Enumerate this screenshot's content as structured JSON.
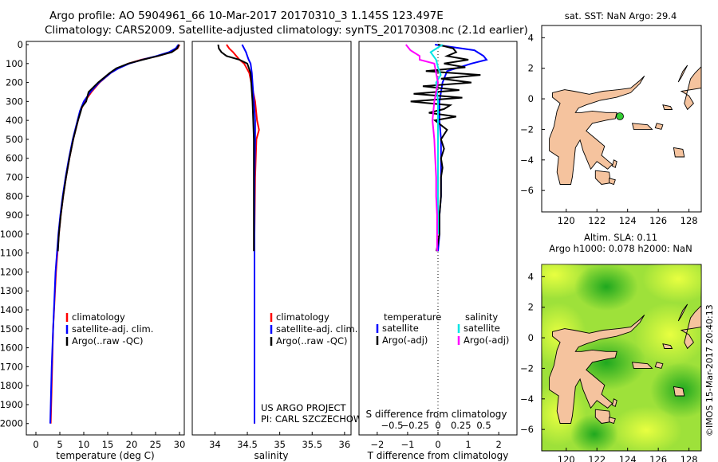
{
  "titles": {
    "line1": "Argo profile: AO 5904961_66 10-Mar-2017 20170310_3 1.145S 123.497E",
    "line2": "Climatology: CARS2009. Satellite-adjusted climatology: synTS_20170308.nc (2.1d earlier)"
  },
  "depth_ticks": [
    0,
    100,
    200,
    300,
    400,
    500,
    600,
    700,
    800,
    900,
    1000,
    1100,
    1200,
    1300,
    1400,
    1500,
    1600,
    1700,
    1800,
    1900,
    2000
  ],
  "colors": {
    "climatology": "#ff0000",
    "satellite": "#0000ff",
    "argo": "#000000",
    "satellite_salinity": "#00e5e5",
    "argo_salinity": "#ff00ff",
    "land": "#f5c39e",
    "sla_dark": "#22aa22",
    "sla_light": "#e8ff40"
  },
  "chart_data": [
    {
      "id": "temperature",
      "type": "line",
      "xlabel": "temperature (deg C)",
      "xlim": [
        -2,
        31
      ],
      "ylim": [
        0,
        2060
      ],
      "xticks": [
        0,
        5,
        10,
        15,
        20,
        25,
        30
      ],
      "legend": [
        "climatology",
        "satellite-adj. clim.",
        "Argo(..raw -QC)"
      ],
      "series": [
        {
          "name": "climatology",
          "depth": [
            0,
            20,
            40,
            60,
            80,
            100,
            125,
            150,
            200,
            250,
            300,
            350,
            400,
            500,
            600,
            700,
            800,
            900,
            1000,
            1200,
            1500,
            1700,
            2000
          ],
          "values": [
            30,
            29.6,
            28.3,
            25.5,
            22,
            19.3,
            17.2,
            15.6,
            13.3,
            11.6,
            10.2,
            9.3,
            8.8,
            7.8,
            7.0,
            6.3,
            5.7,
            5.2,
            4.8,
            4.2,
            3.6,
            3.4,
            3.1
          ]
        },
        {
          "name": "satellite-adj. clim.",
          "depth": [
            0,
            20,
            40,
            60,
            80,
            100,
            125,
            150,
            200,
            250,
            300,
            350,
            400,
            500,
            600,
            700,
            800,
            900,
            1000,
            1200,
            1500,
            1700,
            2000
          ],
          "values": [
            29.8,
            29.2,
            27.8,
            25.2,
            22.2,
            19.5,
            17.3,
            15.6,
            13.2,
            11.4,
            10.0,
            9.2,
            8.7,
            7.7,
            6.9,
            6.2,
            5.6,
            5.1,
            4.7,
            4.1,
            3.6,
            3.3,
            3.0
          ]
        },
        {
          "name": "Argo(..raw -QC)",
          "depth": [
            0,
            20,
            40,
            60,
            80,
            100,
            125,
            150,
            200,
            250,
            300,
            330,
            350,
            400,
            500,
            600,
            700,
            800,
            900,
            1000,
            1090
          ],
          "values": [
            29.9,
            29.5,
            28.4,
            25.5,
            22.3,
            19.3,
            16.8,
            15.4,
            13.0,
            11.0,
            10.5,
            9.6,
            9.4,
            8.8,
            7.8,
            7.0,
            6.3,
            5.7,
            5.2,
            4.8,
            4.6
          ]
        }
      ]
    },
    {
      "id": "salinity",
      "type": "line",
      "xlabel": "salinity",
      "xlim": [
        33.65,
        36.1
      ],
      "ylim": [
        0,
        2060
      ],
      "xticks": [
        34,
        34.5,
        35,
        35.5,
        36
      ],
      "xtick_labels": [
        "34",
        "34.5",
        "35",
        "35.5",
        "36"
      ],
      "legend": [
        "climatology",
        "satellite-adj. clim.",
        "Argo(..raw -QC)"
      ],
      "annotation": [
        "US ARGO PROJECT",
        "PI: CARL SZCZECHOWSKI"
      ],
      "series": [
        {
          "name": "climatology",
          "depth": [
            0,
            20,
            40,
            60,
            80,
            100,
            150,
            200,
            300,
            400,
            450,
            500,
            700,
            1000,
            1500,
            2000
          ],
          "values": [
            34.18,
            34.22,
            34.28,
            34.33,
            34.38,
            34.45,
            34.53,
            34.56,
            34.62,
            34.65,
            34.68,
            34.64,
            34.62,
            34.61,
            34.61,
            34.61
          ]
        },
        {
          "name": "satellite-adj. clim.",
          "depth": [
            0,
            20,
            40,
            60,
            80,
            100,
            150,
            200,
            300,
            400,
            500,
            700,
            1000,
            1500,
            2000
          ],
          "values": [
            34.42,
            34.45,
            34.48,
            34.5,
            34.52,
            34.55,
            34.57,
            34.58,
            34.6,
            34.62,
            34.62,
            34.61,
            34.61,
            34.61,
            34.61
          ]
        },
        {
          "name": "Argo(..raw -QC)",
          "depth": [
            0,
            20,
            40,
            60,
            80,
            100,
            150,
            200,
            300,
            400,
            500,
            600,
            700,
            800,
            900,
            1000,
            1090
          ],
          "values": [
            34.05,
            34.06,
            34.1,
            34.18,
            34.38,
            34.5,
            34.55,
            34.56,
            34.58,
            34.59,
            34.6,
            34.6,
            34.6,
            34.6,
            34.6,
            34.6,
            34.6
          ]
        }
      ]
    },
    {
      "id": "difference",
      "type": "line",
      "xlabel": "T difference from climatology",
      "xlabel2": "S difference from climatology",
      "xlim": [
        -2.6,
        2.6
      ],
      "ylim": [
        0,
        2060
      ],
      "xticks": [
        -2,
        -1,
        0,
        1,
        2
      ],
      "xtick_labels": [
        "−2",
        "−1",
        "0",
        "1",
        "2"
      ],
      "s_ticks": [
        -0.5,
        -0.25,
        0,
        0.25,
        0.5
      ],
      "s_tick_labels": [
        "−0.5",
        "−0.25",
        "0",
        "0.25",
        "0.5"
      ],
      "legend_temperature": {
        "title": "temperature",
        "items": [
          "satellite",
          "Argo(-adj)"
        ]
      },
      "legend_salinity": {
        "title": "salinity",
        "items": [
          "satellite",
          "Argo(-adj)"
        ]
      },
      "series": [
        {
          "name": "temperature satellite",
          "depth": [
            0,
            30,
            60,
            80,
            100,
            140,
            200,
            300,
            400,
            500,
            600,
            700,
            800,
            900,
            1000,
            1090
          ],
          "values": [
            -0.1,
            1.2,
            1.5,
            1.6,
            1.1,
            0.3,
            0.15,
            0.05,
            0.05,
            0.1,
            0.1,
            0.1,
            0.1,
            0.05,
            0.05,
            0.0
          ]
        },
        {
          "name": "temperature Argo(-adj)",
          "depth": [
            0,
            20,
            40,
            60,
            80,
            100,
            120,
            140,
            160,
            180,
            200,
            220,
            240,
            260,
            280,
            300,
            320,
            340,
            360,
            380,
            400,
            450,
            500,
            550,
            600,
            650,
            700,
            800,
            900,
            1000,
            1090
          ],
          "values": [
            0.0,
            0.5,
            0.6,
            0.3,
            1.0,
            0.2,
            0.9,
            -0.4,
            1.4,
            0.1,
            1.1,
            -0.5,
            0.7,
            -0.8,
            0.8,
            -0.9,
            0.4,
            0.2,
            -0.3,
            0.6,
            -0.1,
            0.3,
            0.1,
            0.2,
            0.1,
            0.15,
            0.1,
            0.1,
            0.05,
            0.05,
            -0.05
          ]
        },
        {
          "name": "salinity satellite",
          "depth": [
            0,
            40,
            80,
            120,
            160,
            200,
            300,
            400,
            500,
            600,
            800,
            1000
          ],
          "values": [
            0.05,
            -0.08,
            -0.02,
            0.0,
            0.03,
            -0.02,
            0.0,
            0.0,
            0.0,
            0.0,
            0.0,
            0.0
          ]
        },
        {
          "name": "salinity Argo(-adj)",
          "depth": [
            0,
            30,
            60,
            80,
            100,
            150,
            200,
            300,
            400,
            500,
            600,
            700,
            800,
            900,
            1000,
            1090
          ],
          "values": [
            -0.35,
            -0.3,
            -0.2,
            -0.2,
            -0.04,
            -0.02,
            0.0,
            -0.04,
            -0.06,
            -0.04,
            -0.03,
            -0.02,
            -0.02,
            -0.01,
            -0.01,
            -0.01
          ]
        }
      ]
    },
    {
      "id": "sst_map",
      "type": "map",
      "title": "sat. SST: NaN Argo: 29.4",
      "xlim": [
        118.4,
        128.8
      ],
      "ylim": [
        -7.4,
        4.8
      ],
      "xticks": [
        120,
        122,
        124,
        126,
        128
      ],
      "yticks": [
        4,
        2,
        0,
        -2,
        -4,
        -6
      ],
      "argo_position": {
        "lon": 123.497,
        "lat": -1.145
      }
    },
    {
      "id": "sla_map",
      "type": "map",
      "title_line1": "Altim. SLA: 0.11",
      "title_line2": "Argo h1000: 0.078 h2000: NaN",
      "xlim": [
        118.4,
        128.8
      ],
      "ylim": [
        -7.4,
        4.8
      ],
      "xticks": [
        120,
        122,
        124,
        126,
        128
      ],
      "yticks": [
        4,
        2,
        0,
        -2,
        -4,
        -6
      ]
    }
  ],
  "credit": "©IMOS 15-Mar-2017 20:40:13"
}
